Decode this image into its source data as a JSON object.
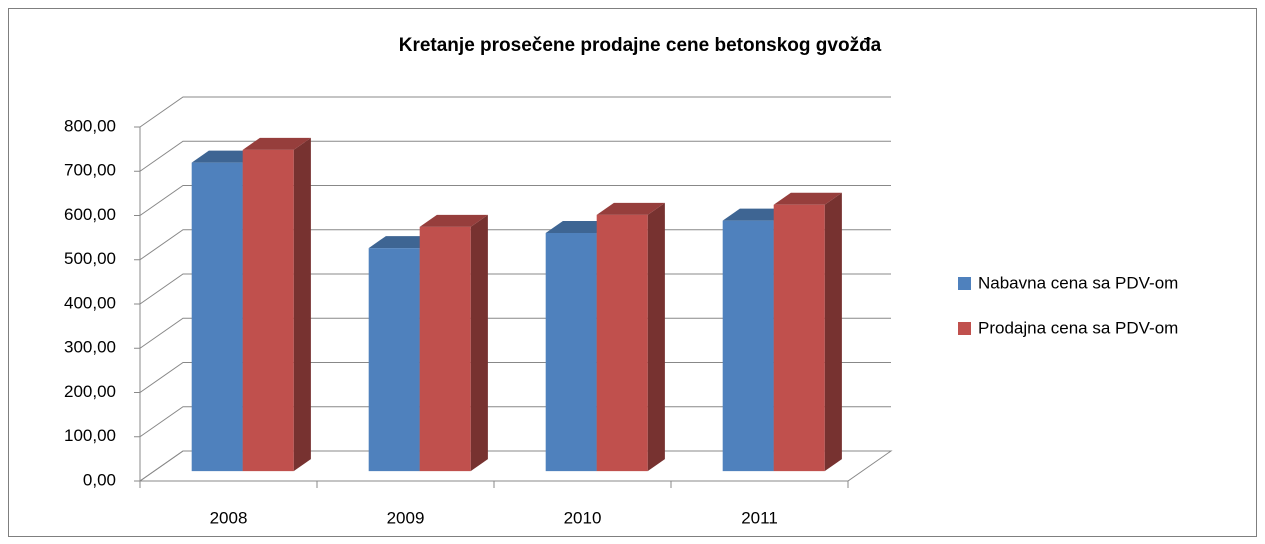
{
  "chart_data": {
    "type": "bar3d",
    "title": "Kretanje prosečene prodajne cene betonskog gvožđa",
    "categories": [
      "2008",
      "2009",
      "2010",
      "2011"
    ],
    "series": [
      {
        "name": "Nabavna cena sa PDV-om",
        "color": "#4f81bd",
        "values": [
          697,
          504,
          538,
          566
        ]
      },
      {
        "name": "Prodajna cena sa PDV-om",
        "color": "#c0504d",
        "values": [
          726,
          552,
          579,
          602
        ]
      }
    ],
    "ylim": [
      0,
      800
    ],
    "yticks": [
      {
        "value": 0,
        "label": "0,00"
      },
      {
        "value": 100,
        "label": "100,00"
      },
      {
        "value": 200,
        "label": "200,00"
      },
      {
        "value": 300,
        "label": "300,00"
      },
      {
        "value": 400,
        "label": "400,00"
      },
      {
        "value": 500,
        "label": "500,00"
      },
      {
        "value": 600,
        "label": "600,00"
      },
      {
        "value": 700,
        "label": "700,00"
      },
      {
        "value": 800,
        "label": "800,00"
      }
    ],
    "grid": true,
    "legend": "right"
  }
}
